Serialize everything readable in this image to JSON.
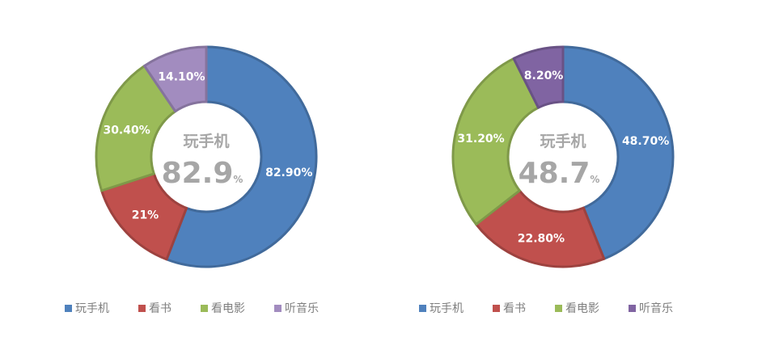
{
  "chart_data": [
    {
      "type": "pie",
      "donut": true,
      "legend_position": "bottom",
      "center_label": "玩手机",
      "center_value": "82.9",
      "center_unit": "%",
      "slices": [
        {
          "name": "玩手机",
          "value": 82.9,
          "label": "82.90%",
          "color": "#4f81bd"
        },
        {
          "name": "看书",
          "value": 21,
          "label": "21%",
          "color": "#c0504d"
        },
        {
          "name": "看电影",
          "value": 30.4,
          "label": "30.40%",
          "color": "#9bbb59"
        },
        {
          "name": "听音乐",
          "value": 14.1,
          "label": "14.10%",
          "color": "#a28cbf"
        }
      ]
    },
    {
      "type": "pie",
      "donut": true,
      "legend_position": "bottom",
      "center_label": "玩手机",
      "center_value": "48.7",
      "center_unit": "%",
      "slices": [
        {
          "name": "玩手机",
          "value": 48.7,
          "label": "48.70%",
          "color": "#4f81bd"
        },
        {
          "name": "看书",
          "value": 22.8,
          "label": "22.80%",
          "color": "#c0504d"
        },
        {
          "name": "看电影",
          "value": 31.2,
          "label": "31.20%",
          "color": "#9bbb59"
        },
        {
          "name": "听音乐",
          "value": 8.2,
          "label": "8.20%",
          "color": "#8064a2"
        }
      ]
    }
  ]
}
